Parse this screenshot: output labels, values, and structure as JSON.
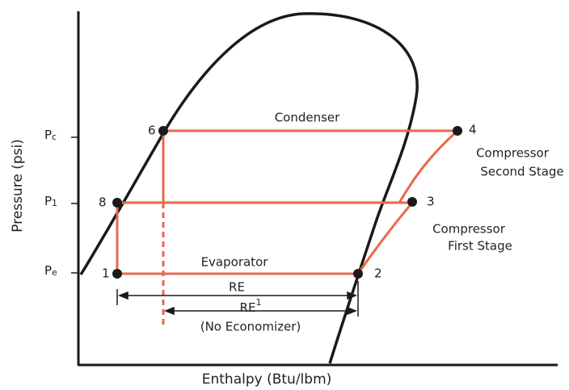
{
  "axes": {
    "y_label": "Pressure (psi)",
    "x_label": "Enthalpy (Btu/lbm)",
    "ticks": [
      {
        "main": "P",
        "sub": "c"
      },
      {
        "main": "P",
        "sub": "1"
      },
      {
        "main": "P",
        "sub": "e"
      }
    ]
  },
  "points": [
    "1",
    "2",
    "3",
    "4",
    "6",
    "8"
  ],
  "labels": {
    "condenser": "Condenser",
    "evaporator": "Evaporator",
    "second_stage": [
      "Compressor",
      "Second Stage"
    ],
    "first_stage": [
      "Compressor",
      "First Stage"
    ],
    "re": "RE",
    "re1": {
      "main": "RE",
      "sup": "1"
    },
    "no_economizer": "(No Economizer)"
  }
}
